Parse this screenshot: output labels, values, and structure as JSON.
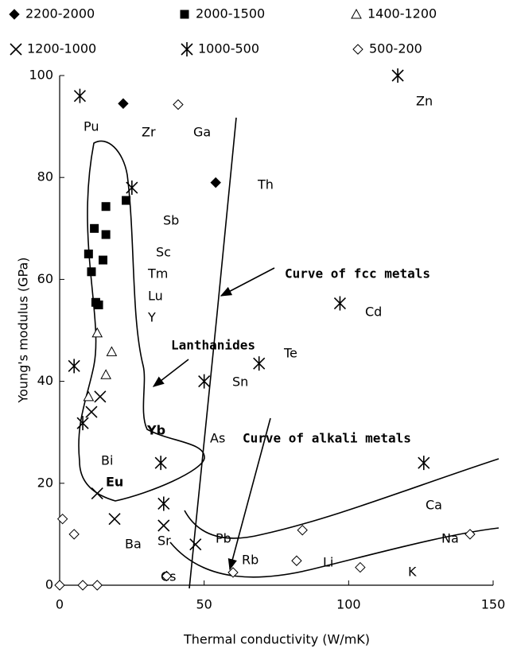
{
  "chart_data": {
    "type": "scatter",
    "xlabel": "Thermal conductivity (W/mK)",
    "ylabel": "Young's modulus (GPa)",
    "xlim": [
      0,
      150
    ],
    "xticks": [
      0,
      50,
      100,
      150
    ],
    "ylim": [
      0,
      100
    ],
    "yticks": [
      0,
      20,
      40,
      60,
      80,
      100
    ],
    "grid": false,
    "series": [
      {
        "name": "2200-2000",
        "marker": "filled-diamond",
        "color": "#000000",
        "x": [
          22,
          54
        ],
        "values": [
          94.5,
          79
        ]
      },
      {
        "name": "2000-1500",
        "marker": "filled-square",
        "color": "#000000",
        "x": [
          23,
          16,
          12,
          16,
          10,
          15,
          11,
          12.5,
          13.5
        ],
        "values": [
          75.5,
          74.3,
          70,
          68.8,
          65,
          63.8,
          61.5,
          55.5,
          55
        ]
      },
      {
        "name": "1400-1200",
        "marker": "triangle",
        "color": "#000000",
        "x": [
          13,
          18,
          16,
          10
        ],
        "values": [
          49.5,
          45.8,
          41.3,
          37
        ]
      },
      {
        "name": "1200-1000",
        "marker": "cross",
        "color": "#000000",
        "x": [
          11,
          14,
          13,
          19,
          36,
          47
        ],
        "values": [
          34,
          37,
          18,
          13,
          11.7,
          8
        ]
      },
      {
        "name": "1000-500",
        "marker": "asterisk",
        "color": "#000000",
        "x": [
          7,
          25,
          5,
          8,
          35,
          36,
          50,
          69,
          97,
          117,
          126
        ],
        "values": [
          96,
          78,
          43,
          31.8,
          24,
          16,
          40,
          43.5,
          55.3,
          100,
          24
        ]
      },
      {
        "name": "500-200",
        "marker": "open-diamond",
        "color": "#000000",
        "x": [
          41,
          1,
          5,
          0,
          8,
          13,
          37,
          60,
          82,
          84,
          104,
          142
        ],
        "values": [
          94.3,
          13,
          10,
          0,
          0,
          0,
          1.8,
          2.5,
          4.8,
          10.8,
          3.5,
          10
        ]
      }
    ],
    "element_labels": [
      "Pu",
      "Zr",
      "Ga",
      "Zn",
      "Th",
      "Sb",
      "Sc",
      "Tm",
      "Lu",
      "Y",
      "Cd",
      "Te",
      "Sn",
      "As",
      "Yb",
      "Bi",
      "Eu",
      "Ca",
      "Na",
      "Pb",
      "Ba",
      "Sr",
      "Rb",
      "Li",
      "K",
      "Cs"
    ],
    "annotations": [
      "Curve of fcc metals",
      "Lanthanides",
      "Curve of alkali metals"
    ]
  }
}
